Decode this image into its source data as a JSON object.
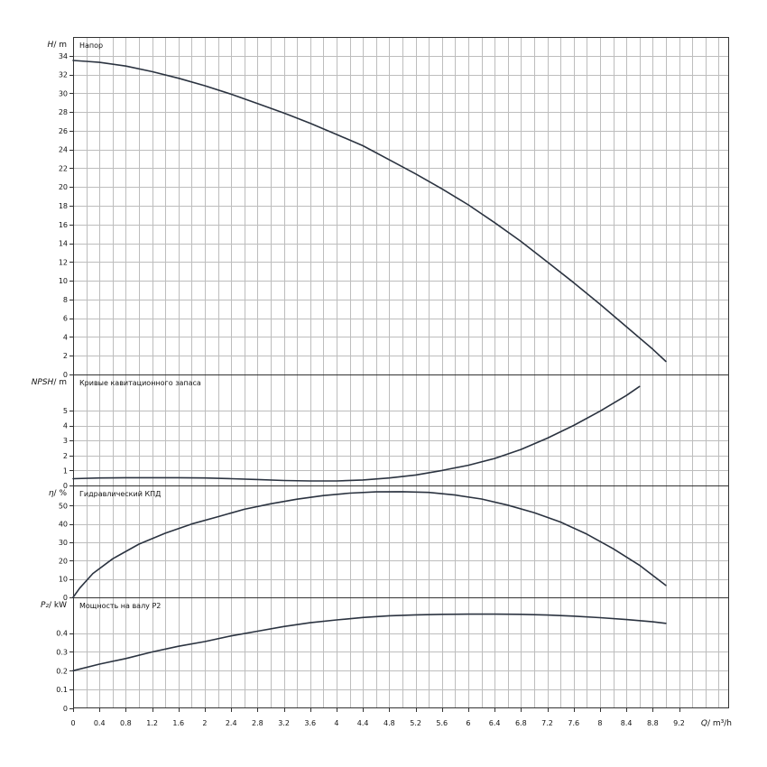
{
  "chart_data": [
    {
      "type": "line",
      "title": "Напор",
      "ylabel_symbol": "H",
      "ylabel_unit": "/ m",
      "xlabel_symbol": "Q",
      "xlabel_unit": "/ m³/h",
      "ylim": [
        0,
        36
      ],
      "xlim": [
        0,
        9.96
      ],
      "yticks": [
        "0",
        "2",
        "4",
        "6",
        "8",
        "10",
        "12",
        "14",
        "16",
        "18",
        "20",
        "22",
        "24",
        "26",
        "28",
        "30",
        "32",
        "34"
      ],
      "series": [
        {
          "x": [
            0,
            0.2,
            0.4,
            0.8,
            1.2,
            1.6,
            2.0,
            2.4,
            2.8,
            3.2,
            3.6,
            4.0,
            4.4,
            4.8,
            5.2,
            5.6,
            6.0,
            6.4,
            6.8,
            7.2,
            7.6,
            8.0,
            8.4,
            8.8,
            9.0
          ],
          "y": [
            33.5,
            33.4,
            33.3,
            32.9,
            32.3,
            31.6,
            30.8,
            29.9,
            28.9,
            27.9,
            26.8,
            25.6,
            24.4,
            22.9,
            21.4,
            19.8,
            18.1,
            16.2,
            14.2,
            12.0,
            9.8,
            7.5,
            5.1,
            2.7,
            1.4
          ]
        }
      ]
    },
    {
      "type": "line",
      "title": "Кривые кавитационного запаса",
      "ylabel_symbol": "NPSH",
      "ylabel_unit": "/ m",
      "ylim": [
        0,
        7.4
      ],
      "xlim": [
        0,
        9.96
      ],
      "yticks": [
        "0",
        "1",
        "2",
        "3",
        "4",
        "5"
      ],
      "series": [
        {
          "x": [
            0,
            0.4,
            0.8,
            1.2,
            1.6,
            2.0,
            2.4,
            2.8,
            3.2,
            3.6,
            4.0,
            4.4,
            4.8,
            5.2,
            5.6,
            6.0,
            6.4,
            6.8,
            7.2,
            7.6,
            8.0,
            8.4,
            8.6
          ],
          "y": [
            0.45,
            0.5,
            0.52,
            0.52,
            0.52,
            0.5,
            0.45,
            0.4,
            0.33,
            0.3,
            0.3,
            0.37,
            0.5,
            0.7,
            1.0,
            1.35,
            1.8,
            2.4,
            3.15,
            4.0,
            4.95,
            6.0,
            6.6
          ]
        }
      ]
    },
    {
      "type": "line",
      "title": "Гидравлический КПД",
      "ylabel_symbol": "η",
      "ylabel_unit": "/ %",
      "ylim": [
        0,
        61
      ],
      "xlim": [
        0,
        9.96
      ],
      "yticks": [
        "0",
        "10",
        "20",
        "30",
        "40",
        "50"
      ],
      "series": [
        {
          "x": [
            0,
            0.1,
            0.3,
            0.6,
            1.0,
            1.4,
            1.8,
            2.2,
            2.6,
            3.0,
            3.4,
            3.8,
            4.2,
            4.6,
            5.0,
            5.4,
            5.8,
            6.2,
            6.6,
            7.0,
            7.4,
            7.8,
            8.2,
            8.6,
            9.0
          ],
          "y": [
            0,
            5,
            13,
            21,
            29,
            35,
            40,
            44,
            48,
            51,
            53.5,
            55.5,
            56.8,
            57.5,
            57.6,
            57.2,
            55.8,
            53.6,
            50.3,
            46.2,
            41.1,
            34.5,
            26.5,
            17.5,
            6.5
          ]
        }
      ]
    },
    {
      "type": "line",
      "title": "Мощность на валу P2",
      "ylabel_symbol": "P₂",
      "ylabel_unit": "/ kW",
      "ylim": [
        0,
        0.59
      ],
      "xlim": [
        0,
        9.96
      ],
      "yticks": [
        "0",
        "0.1",
        "0.2",
        "0.3",
        "0.4"
      ],
      "xticks": [
        "0",
        "0.4",
        "0.8",
        "1.2",
        "1.6",
        "2",
        "2.4",
        "2.8",
        "3.2",
        "3.6",
        "4",
        "4.4",
        "4.8",
        "5.2",
        "5.6",
        "6",
        "6.4",
        "6.8",
        "7.2",
        "7.6",
        "8",
        "8.4",
        "8.8",
        "9.2"
      ],
      "series": [
        {
          "x": [
            0,
            0.4,
            0.8,
            1.2,
            1.6,
            2.0,
            2.4,
            2.8,
            3.2,
            3.6,
            4.0,
            4.4,
            4.8,
            5.2,
            5.6,
            6.0,
            6.4,
            6.8,
            7.2,
            7.6,
            8.0,
            8.4,
            8.8,
            9.0
          ],
          "y": [
            0.2,
            0.235,
            0.265,
            0.3,
            0.33,
            0.355,
            0.385,
            0.41,
            0.435,
            0.455,
            0.47,
            0.483,
            0.492,
            0.497,
            0.5,
            0.501,
            0.501,
            0.5,
            0.496,
            0.49,
            0.482,
            0.472,
            0.46,
            0.452
          ]
        }
      ]
    }
  ]
}
